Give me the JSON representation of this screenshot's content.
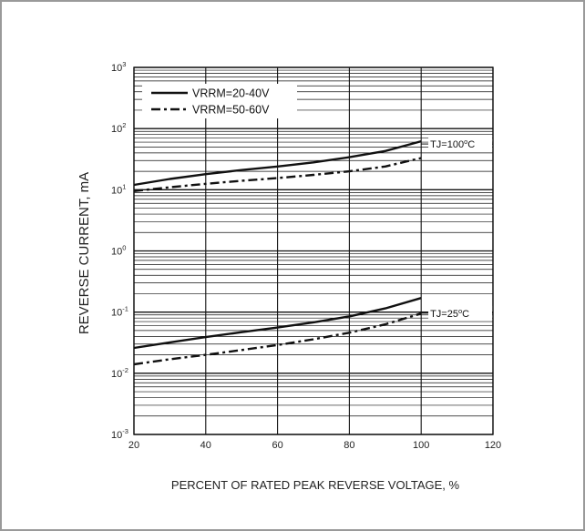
{
  "chart_data": {
    "type": "line",
    "title": "",
    "xlabel": "PERCENT OF RATED PEAK REVERSE VOLTAGE, %",
    "ylabel": "REVERSE CURRENT, mA",
    "xlim": [
      20,
      120
    ],
    "ylim": [
      0.001,
      1000
    ],
    "yscale": "log",
    "x_ticks": [
      "20",
      "40",
      "60",
      "80",
      "100",
      "120"
    ],
    "y_ticks": [
      {
        "base": "10",
        "exp": "-3"
      },
      {
        "base": "10",
        "exp": "-2"
      },
      {
        "base": "10",
        "exp": "-1"
      },
      {
        "base": "10",
        "exp": "0"
      },
      {
        "base": "10",
        "exp": "1"
      },
      {
        "base": "10",
        "exp": "2"
      },
      {
        "base": "10",
        "exp": "3"
      }
    ],
    "grid": true,
    "legend_position": "top-left",
    "legend": [
      {
        "label": "VRRM=20-40V",
        "style": "solid"
      },
      {
        "label": "VRRM=50-60V",
        "style": "dash-dot"
      }
    ],
    "series": [
      {
        "group": "VRRM=20-40V",
        "condition": "TJ=100°C",
        "style": "solid",
        "x": [
          20,
          30,
          40,
          50,
          60,
          70,
          80,
          90,
          100
        ],
        "y": [
          12,
          15,
          18,
          21,
          24,
          28,
          34,
          43,
          62
        ]
      },
      {
        "group": "VRRM=50-60V",
        "condition": "TJ=100°C",
        "style": "dash-dot",
        "x": [
          20,
          30,
          40,
          50,
          60,
          70,
          80,
          90,
          100
        ],
        "y": [
          9.5,
          11,
          12.5,
          14,
          15.5,
          17.5,
          20,
          24,
          33
        ]
      },
      {
        "group": "VRRM=20-40V",
        "condition": "TJ=25°C",
        "style": "solid",
        "x": [
          20,
          30,
          40,
          50,
          60,
          70,
          80,
          90,
          100
        ],
        "y": [
          0.026,
          0.032,
          0.039,
          0.047,
          0.056,
          0.068,
          0.085,
          0.115,
          0.17
        ]
      },
      {
        "group": "VRRM=50-60V",
        "condition": "TJ=25°C",
        "style": "dash-dot",
        "x": [
          20,
          30,
          40,
          50,
          60,
          70,
          80,
          90,
          100
        ],
        "y": [
          0.014,
          0.017,
          0.02,
          0.024,
          0.029,
          0.036,
          0.046,
          0.063,
          0.095
        ]
      }
    ],
    "annotations": [
      {
        "prefix": "TJ=100",
        "suffix": "C",
        "degree": "o",
        "y": 56
      },
      {
        "prefix": "TJ=25",
        "suffix": "C",
        "degree": "o",
        "y": 0.096
      }
    ],
    "colors": {
      "line": "#111111",
      "grid": "#111111",
      "frame": "#9a9a9a"
    }
  }
}
